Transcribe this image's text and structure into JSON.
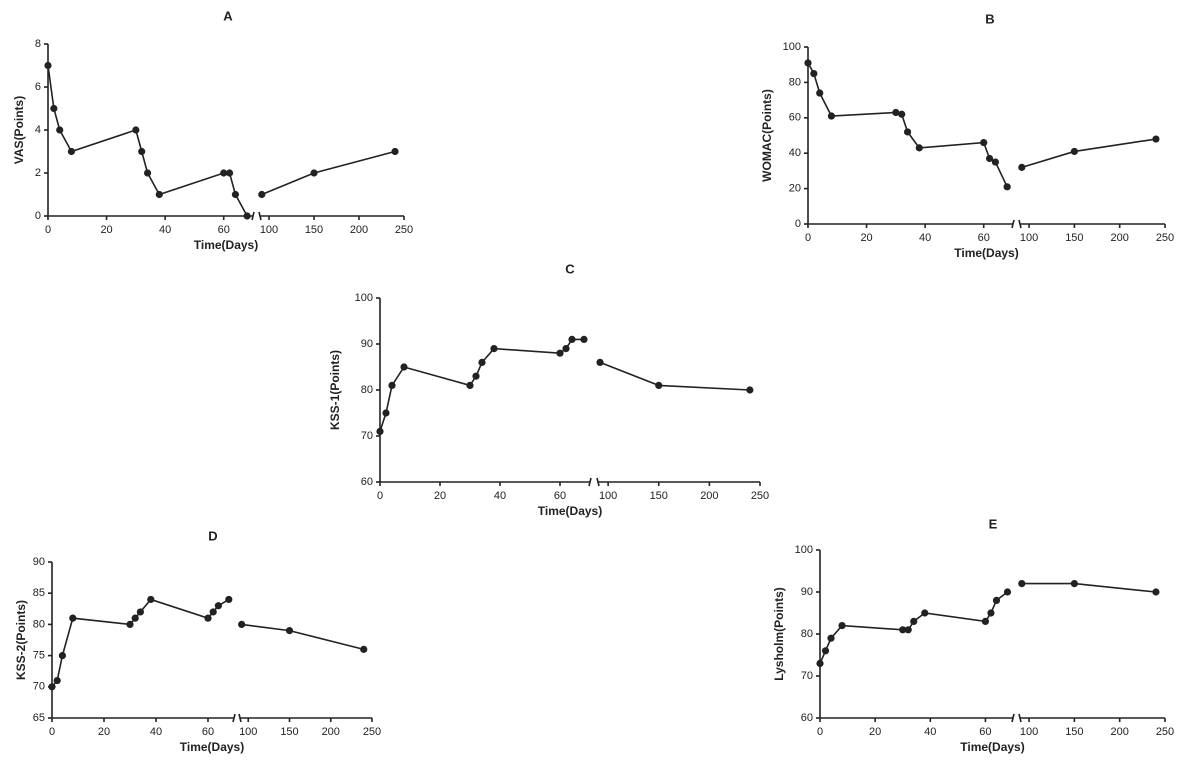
{
  "chart_data": [
    {
      "type": "line",
      "title": "A",
      "xlabel": "Time(Days)",
      "ylabel": "VAS(Points)",
      "color": "#222222",
      "x": [
        0,
        2,
        4,
        8,
        30,
        32,
        34,
        38,
        60,
        62,
        64,
        68,
        92,
        150,
        240
      ],
      "values": [
        7,
        5,
        4,
        3,
        4,
        3,
        2,
        1,
        2,
        2,
        1,
        0,
        1,
        2,
        3
      ],
      "xlim_segments": [
        [
          0,
          70
        ],
        [
          90,
          250
        ]
      ],
      "xticks": [
        0,
        20,
        40,
        60,
        100,
        150,
        200,
        250
      ],
      "ylim": [
        0,
        8
      ],
      "yticks": [
        0,
        2,
        4,
        6,
        8
      ]
    },
    {
      "type": "line",
      "title": "B",
      "xlabel": "Time(Days)",
      "ylabel": "WOMAC(Points)",
      "color": "#222222",
      "x": [
        0,
        2,
        4,
        8,
        30,
        32,
        34,
        38,
        60,
        62,
        64,
        68,
        92,
        150,
        240
      ],
      "values": [
        91,
        85,
        74,
        61,
        63,
        62,
        52,
        43,
        46,
        37,
        35,
        21,
        32,
        41,
        48
      ],
      "xlim_segments": [
        [
          0,
          70
        ],
        [
          90,
          250
        ]
      ],
      "xticks": [
        0,
        20,
        40,
        60,
        100,
        150,
        200,
        250
      ],
      "ylim": [
        0,
        100
      ],
      "yticks": [
        0,
        20,
        40,
        60,
        80,
        100
      ]
    },
    {
      "type": "line",
      "title": "C",
      "xlabel": "Time(Days)",
      "ylabel": "KSS-1(Points)",
      "color": "#222222",
      "x": [
        0,
        2,
        4,
        8,
        30,
        32,
        34,
        38,
        60,
        62,
        64,
        68,
        92,
        150,
        240
      ],
      "values": [
        71,
        75,
        81,
        85,
        81,
        83,
        86,
        89,
        88,
        89,
        91,
        91,
        86,
        81,
        80
      ],
      "xlim_segments": [
        [
          0,
          70
        ],
        [
          90,
          250
        ]
      ],
      "xticks": [
        0,
        20,
        40,
        60,
        100,
        150,
        200,
        250
      ],
      "ylim": [
        60,
        100
      ],
      "yticks": [
        60,
        70,
        80,
        90,
        100
      ]
    },
    {
      "type": "line",
      "title": "D",
      "xlabel": "Time(Days)",
      "ylabel": "KSS-2(Points)",
      "color": "#222222",
      "x": [
        0,
        2,
        4,
        8,
        30,
        32,
        34,
        38,
        60,
        62,
        64,
        68,
        92,
        150,
        240
      ],
      "values": [
        70,
        71,
        75,
        81,
        80,
        81,
        82,
        84,
        81,
        82,
        83,
        84,
        80,
        79,
        76
      ],
      "xlim_segments": [
        [
          0,
          70
        ],
        [
          90,
          250
        ]
      ],
      "xticks": [
        0,
        20,
        40,
        60,
        100,
        150,
        200,
        250
      ],
      "ylim": [
        65,
        90
      ],
      "yticks": [
        65,
        70,
        75,
        80,
        85,
        90
      ]
    },
    {
      "type": "line",
      "title": "E",
      "xlabel": "Time(Days)",
      "ylabel": "Lysholm(Points)",
      "color": "#222222",
      "x": [
        0,
        2,
        4,
        8,
        30,
        32,
        34,
        38,
        60,
        62,
        64,
        68,
        92,
        150,
        240
      ],
      "values": [
        73,
        76,
        79,
        82,
        81,
        81,
        83,
        85,
        83,
        85,
        88,
        90,
        92,
        92,
        90
      ],
      "xlim_segments": [
        [
          0,
          70
        ],
        [
          90,
          250
        ]
      ],
      "xticks": [
        0,
        20,
        40,
        60,
        100,
        150,
        200,
        250
      ],
      "ylim": [
        60,
        100
      ],
      "yticks": [
        60,
        70,
        80,
        90,
        100
      ]
    }
  ]
}
